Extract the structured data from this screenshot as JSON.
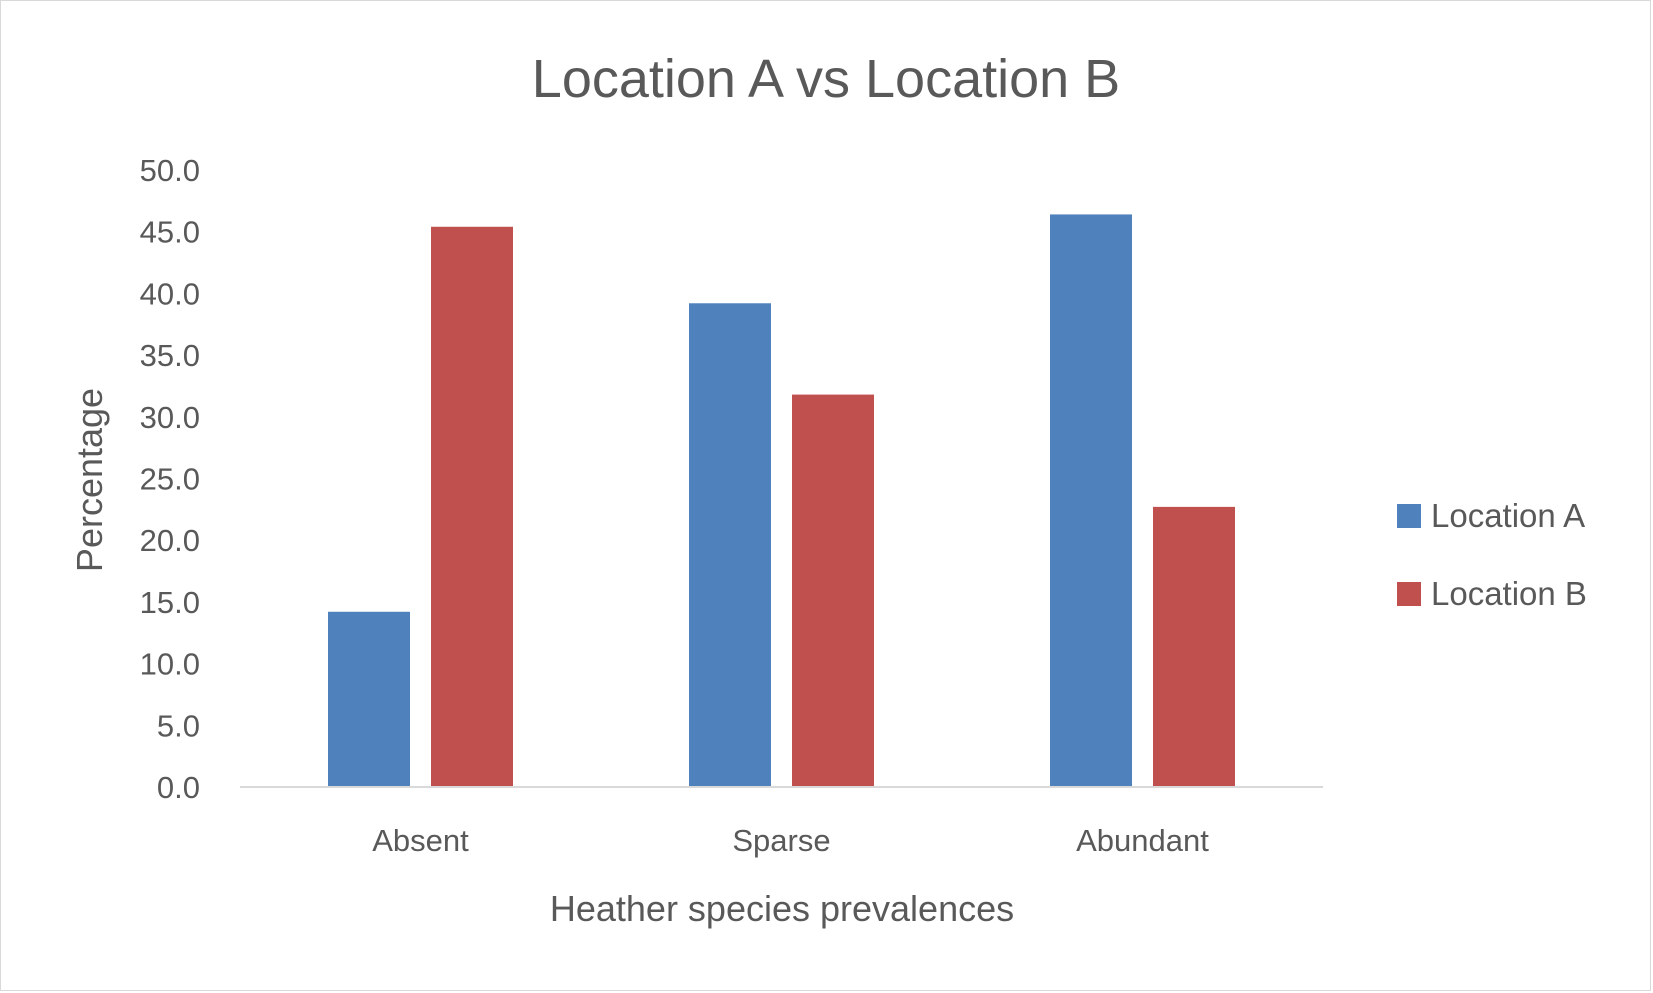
{
  "chart_data": {
    "type": "bar",
    "title": "Location A vs Location B",
    "xlabel": "Heather species prevalences",
    "ylabel": "Percentage",
    "categories": [
      "Absent",
      "Sparse",
      "Abundant"
    ],
    "series": [
      {
        "name": "Location A",
        "color": "#4f81bd",
        "values": [
          14.2,
          39.2,
          46.4
        ]
      },
      {
        "name": "Location B",
        "color": "#c0504d",
        "values": [
          45.4,
          31.8,
          22.7
        ]
      }
    ],
    "ylim": [
      0,
      50
    ],
    "ytick_step": 5,
    "ytick_labels": [
      "0.0",
      "5.0",
      "10.0",
      "15.0",
      "20.0",
      "25.0",
      "30.0",
      "35.0",
      "40.0",
      "45.0",
      "50.0"
    ],
    "grid": false,
    "legend": "right"
  }
}
